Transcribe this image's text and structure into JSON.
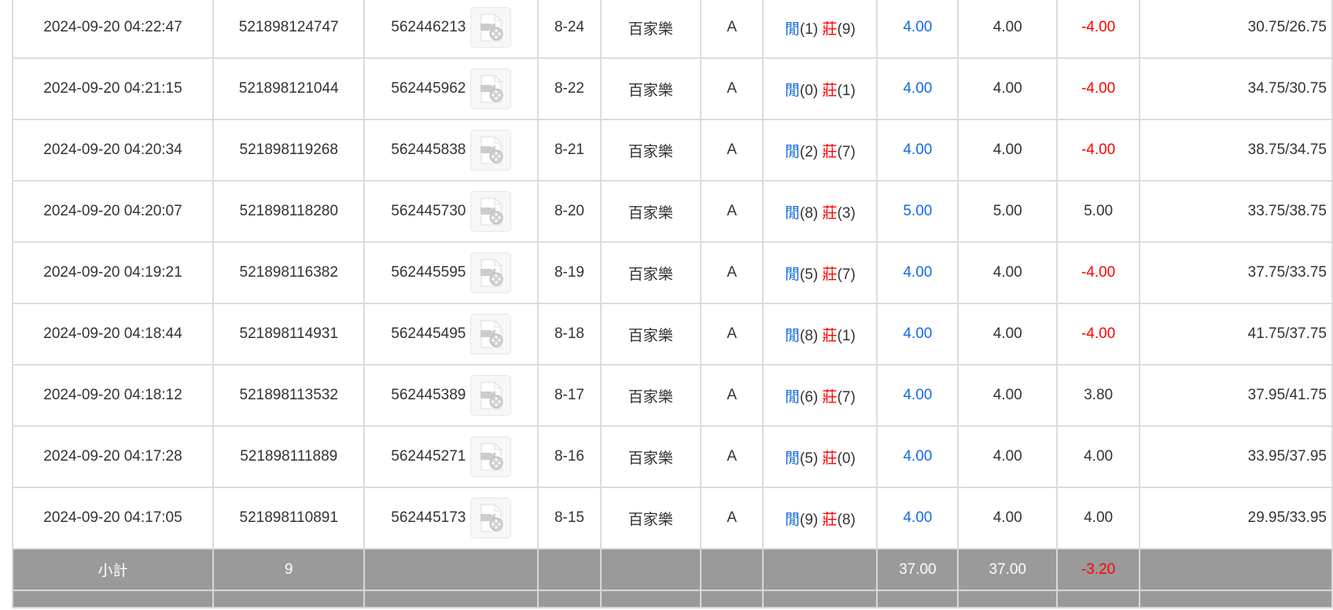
{
  "rows": [
    {
      "time": "2024-09-20 04:22:47",
      "bet_id": "521898124747",
      "round_id": "562446213",
      "shoe": "8-24",
      "game": "百家樂",
      "table": "A",
      "player_label": "閒",
      "player": "(1)",
      "banker_label": "莊",
      "banker": "(9)",
      "bet": "4.00",
      "valid": "4.00",
      "win": "-4.00",
      "win_neg": true,
      "balance": "30.75/26.75"
    },
    {
      "time": "2024-09-20 04:21:15",
      "bet_id": "521898121044",
      "round_id": "562445962",
      "shoe": "8-22",
      "game": "百家樂",
      "table": "A",
      "player_label": "閒",
      "player": "(0)",
      "banker_label": "莊",
      "banker": "(1)",
      "bet": "4.00",
      "valid": "4.00",
      "win": "-4.00",
      "win_neg": true,
      "balance": "34.75/30.75"
    },
    {
      "time": "2024-09-20 04:20:34",
      "bet_id": "521898119268",
      "round_id": "562445838",
      "shoe": "8-21",
      "game": "百家樂",
      "table": "A",
      "player_label": "閒",
      "player": "(2)",
      "banker_label": "莊",
      "banker": "(7)",
      "bet": "4.00",
      "valid": "4.00",
      "win": "-4.00",
      "win_neg": true,
      "balance": "38.75/34.75"
    },
    {
      "time": "2024-09-20 04:20:07",
      "bet_id": "521898118280",
      "round_id": "562445730",
      "shoe": "8-20",
      "game": "百家樂",
      "table": "A",
      "player_label": "閒",
      "player": "(8)",
      "banker_label": "莊",
      "banker": "(3)",
      "bet": "5.00",
      "valid": "5.00",
      "win": "5.00",
      "win_neg": false,
      "balance": "33.75/38.75"
    },
    {
      "time": "2024-09-20 04:19:21",
      "bet_id": "521898116382",
      "round_id": "562445595",
      "shoe": "8-19",
      "game": "百家樂",
      "table": "A",
      "player_label": "閒",
      "player": "(5)",
      "banker_label": "莊",
      "banker": "(7)",
      "bet": "4.00",
      "valid": "4.00",
      "win": "-4.00",
      "win_neg": true,
      "balance": "37.75/33.75"
    },
    {
      "time": "2024-09-20 04:18:44",
      "bet_id": "521898114931",
      "round_id": "562445495",
      "shoe": "8-18",
      "game": "百家樂",
      "table": "A",
      "player_label": "閒",
      "player": "(8)",
      "banker_label": "莊",
      "banker": "(1)",
      "bet": "4.00",
      "valid": "4.00",
      "win": "-4.00",
      "win_neg": true,
      "balance": "41.75/37.75"
    },
    {
      "time": "2024-09-20 04:18:12",
      "bet_id": "521898113532",
      "round_id": "562445389",
      "shoe": "8-17",
      "game": "百家樂",
      "table": "A",
      "player_label": "閒",
      "player": "(6)",
      "banker_label": "莊",
      "banker": "(7)",
      "bet": "4.00",
      "valid": "4.00",
      "win": "3.80",
      "win_neg": false,
      "balance": "37.95/41.75"
    },
    {
      "time": "2024-09-20 04:17:28",
      "bet_id": "521898111889",
      "round_id": "562445271",
      "shoe": "8-16",
      "game": "百家樂",
      "table": "A",
      "player_label": "閒",
      "player": "(5)",
      "banker_label": "莊",
      "banker": "(0)",
      "bet": "4.00",
      "valid": "4.00",
      "win": "4.00",
      "win_neg": false,
      "balance": "33.95/37.95"
    },
    {
      "time": "2024-09-20 04:17:05",
      "bet_id": "521898110891",
      "round_id": "562445173",
      "shoe": "8-15",
      "game": "百家樂",
      "table": "A",
      "player_label": "閒",
      "player": "(9)",
      "banker_label": "莊",
      "banker": "(8)",
      "bet": "4.00",
      "valid": "4.00",
      "win": "4.00",
      "win_neg": false,
      "balance": "29.95/33.95"
    }
  ],
  "subtotal": {
    "label": "小計",
    "count": "9",
    "bet": "37.00",
    "valid": "37.00",
    "win": "-3.20"
  },
  "colors": {
    "player": "#1469e6",
    "banker": "#ff0000",
    "negative": "#ff0000",
    "subtotal_bg": "#9a9a9a"
  },
  "icons": {
    "replay": "video-file-icon"
  }
}
